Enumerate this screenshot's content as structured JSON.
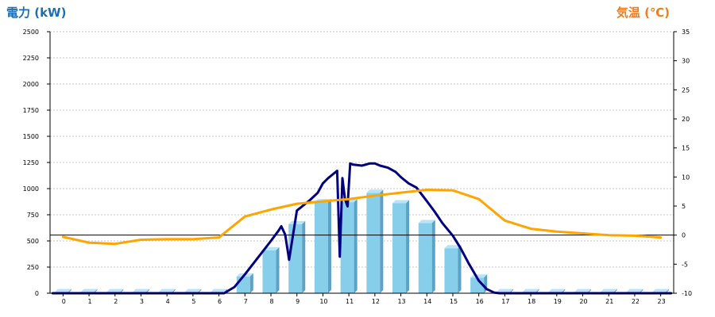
{
  "chart_data": {
    "type": "bar+line",
    "left_axis": {
      "title": "電力 (kW)",
      "min": 0,
      "max": 2500,
      "step": 250,
      "ticks": [
        "0",
        "250",
        "500",
        "750",
        "1000",
        "1250",
        "1500",
        "1750",
        "2000",
        "2250",
        "2500"
      ]
    },
    "right_axis": {
      "title": "気温 (℃)",
      "min": -10,
      "max": 35,
      "step": 5,
      "ticks": [
        "-10",
        "-5",
        "0",
        "5",
        "10",
        "15",
        "20",
        "25",
        "30",
        "35"
      ]
    },
    "categories": [
      "0",
      "1",
      "2",
      "3",
      "4",
      "5",
      "6",
      "7",
      "8",
      "9",
      "10",
      "11",
      "12",
      "13",
      "14",
      "15",
      "16",
      "17",
      "18",
      "19",
      "20",
      "21",
      "22",
      "23"
    ],
    "grid": true,
    "colors": {
      "bar": "#87ceeb",
      "bar_top": "#b9e4f5",
      "bar_side": "#5aa3c6",
      "power_line": "#000080",
      "temp_line": "#ffa500",
      "left_title": "#1a6fb4",
      "right_title": "#f07d1a"
    },
    "series": [
      {
        "kind": "bar",
        "axis": "left",
        "values": [
          10,
          10,
          10,
          10,
          10,
          10,
          10,
          160,
          410,
          660,
          870,
          870,
          960,
          860,
          670,
          430,
          150,
          10,
          10,
          10,
          10,
          10,
          10,
          10
        ]
      },
      {
        "kind": "line",
        "axis": "left",
        "x": [
          -0.4,
          6.2,
          6.6,
          7.0,
          7.5,
          8.0,
          8.3,
          8.4,
          8.55,
          8.7,
          9.0,
          9.5,
          9.8,
          10.0,
          10.2,
          10.4,
          10.55,
          10.65,
          10.75,
          10.85,
          10.95,
          11.05,
          11.15,
          11.5,
          11.8,
          12.0,
          12.2,
          12.5,
          12.8,
          13.0,
          13.3,
          13.6,
          14.0,
          14.3,
          14.6,
          15.0,
          15.3,
          15.6,
          16.0,
          16.3,
          16.6,
          16.8,
          23.4
        ],
        "y": [
          0,
          0,
          60,
          180,
          340,
          500,
          600,
          640,
          560,
          320,
          790,
          890,
          960,
          1050,
          1100,
          1140,
          1170,
          350,
          1100,
          900,
          830,
          1240,
          1230,
          1220,
          1240,
          1240,
          1220,
          1200,
          1160,
          1110,
          1050,
          1010,
          880,
          780,
          670,
          550,
          430,
          290,
          120,
          40,
          5,
          0,
          0
        ]
      },
      {
        "kind": "line",
        "axis": "right",
        "x": [
          0,
          1,
          2,
          3,
          4,
          5,
          6,
          7,
          8,
          9,
          10,
          11,
          12,
          13,
          14,
          15,
          16,
          17,
          18,
          19,
          20,
          21,
          22,
          23
        ],
        "y": [
          -0.3,
          -1.3,
          -1.5,
          -0.8,
          -0.7,
          -0.7,
          -0.4,
          3.2,
          4.4,
          5.4,
          5.8,
          6.2,
          6.8,
          7.3,
          7.8,
          7.7,
          6.2,
          2.5,
          1.1,
          0.6,
          0.3,
          0,
          -0.1,
          -0.4
        ]
      }
    ]
  }
}
